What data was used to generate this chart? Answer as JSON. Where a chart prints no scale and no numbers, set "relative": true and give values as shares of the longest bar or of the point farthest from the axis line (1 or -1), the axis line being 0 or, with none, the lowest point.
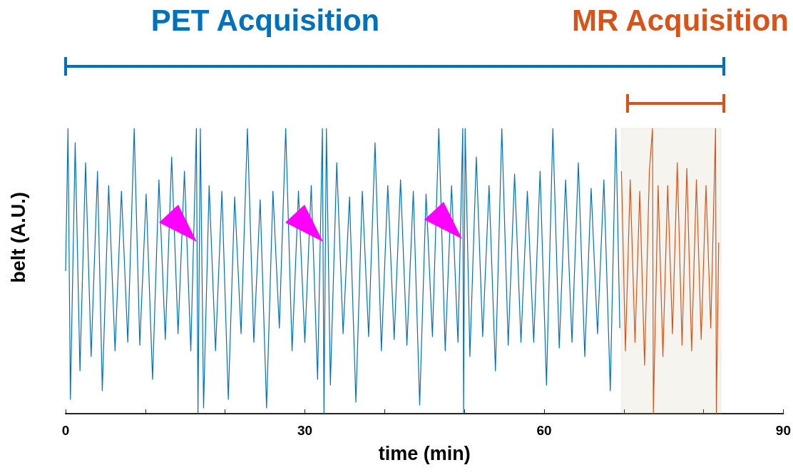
{
  "chart_data": {
    "type": "line",
    "relative": true,
    "xlabel": "time (min)",
    "ylabel": "belt (A.U.)",
    "marker": "none",
    "xlim": [
      0,
      90
    ],
    "xticks": [
      0,
      {
        "value": 10,
        "label": null
      },
      {
        "value": 20,
        "label": null
      },
      30,
      {
        "value": 40,
        "label": null
      },
      {
        "value": 50,
        "label": null
      },
      60,
      {
        "value": 70,
        "label": null
      },
      {
        "value": 80,
        "label": null
      },
      90
    ],
    "annotations": [
      "PET Acquisition",
      "MR Acquisition"
    ],
    "bands": [
      {
        "axis": "x",
        "from": 69.7,
        "to": 82.2,
        "color": "#b8a878"
      }
    ],
    "series": [
      {
        "color": "#0072bd",
        "x": [
          0,
          0.3,
          0.6,
          1.2,
          1.8,
          2.5,
          3.2,
          4.0,
          4.6,
          5.4,
          6.2,
          7.0,
          7.8,
          8.6,
          9.3,
          10.1,
          10.9,
          11.7,
          12.5,
          13.3,
          14.1,
          14.9,
          15.7,
          16.4,
          16.6,
          16.9,
          17.3,
          18.0,
          18.8,
          19.6,
          20.4,
          21.2,
          22.0,
          22.8,
          23.6,
          24.4,
          25.2,
          26.0,
          26.8,
          27.6,
          28.4,
          29.2,
          30.0,
          30.8,
          31.6,
          32.2,
          32.4,
          32.7,
          33.2,
          34.0,
          34.8,
          35.6,
          36.4,
          37.2,
          38.0,
          38.8,
          39.6,
          40.4,
          41.2,
          42.0,
          42.8,
          43.6,
          44.4,
          45.2,
          46.0,
          46.8,
          47.6,
          48.4,
          49.2,
          49.8,
          49.9,
          50.1,
          50.7,
          51.5,
          52.3,
          53.1,
          53.9,
          54.7,
          55.5,
          56.3,
          57.1,
          57.9,
          58.7,
          59.5,
          60.3,
          61.1,
          61.9,
          62.7,
          63.5,
          64.3,
          65.1,
          65.9,
          66.7,
          67.5,
          68.3,
          69.0,
          69.5
        ],
        "values": [
          0.5,
          1.0,
          0.05,
          0.95,
          0.15,
          0.88,
          0.2,
          0.85,
          0.08,
          0.8,
          0.22,
          0.78,
          0.25,
          1.0,
          0.24,
          0.77,
          0.12,
          0.82,
          0.26,
          0.9,
          0.28,
          0.85,
          0.22,
          1.0,
          0.0,
          1.0,
          0.02,
          0.8,
          0.22,
          0.78,
          0.05,
          0.76,
          0.28,
          1.0,
          0.25,
          0.75,
          0.02,
          0.78,
          0.3,
          1.0,
          0.22,
          0.78,
          0.25,
          0.8,
          0.12,
          1.0,
          0.0,
          1.0,
          0.1,
          0.88,
          0.28,
          0.76,
          0.04,
          0.78,
          0.27,
          0.95,
          0.22,
          0.8,
          0.26,
          0.82,
          0.24,
          0.78,
          0.03,
          0.77,
          0.27,
          1.0,
          0.22,
          0.8,
          0.25,
          1.0,
          0.0,
          1.0,
          0.2,
          0.9,
          0.27,
          0.8,
          0.15,
          1.0,
          0.24,
          0.84,
          0.25,
          0.78,
          0.25,
          0.85,
          0.1,
          1.0,
          0.23,
          0.82,
          0.25,
          0.88,
          0.2,
          0.79,
          0.28,
          0.82,
          0.08,
          1.0,
          0.3
        ]
      },
      {
        "color": "#d95319",
        "x": [
          69.7,
          70.2,
          70.8,
          71.4,
          72.0,
          72.6,
          73.2,
          73.6,
          73.7,
          74.3,
          74.9,
          75.5,
          76.1,
          76.7,
          77.3,
          77.9,
          78.5,
          79.1,
          79.7,
          80.3,
          80.9,
          81.5,
          81.6,
          81.9
        ],
        "values": [
          0.85,
          0.22,
          0.82,
          0.25,
          0.78,
          0.17,
          0.85,
          1.0,
          0.0,
          0.8,
          0.2,
          0.8,
          0.28,
          0.88,
          0.24,
          0.86,
          0.22,
          0.82,
          0.26,
          0.8,
          0.3,
          1.0,
          0.0,
          0.6
        ]
      }
    ]
  }
}
